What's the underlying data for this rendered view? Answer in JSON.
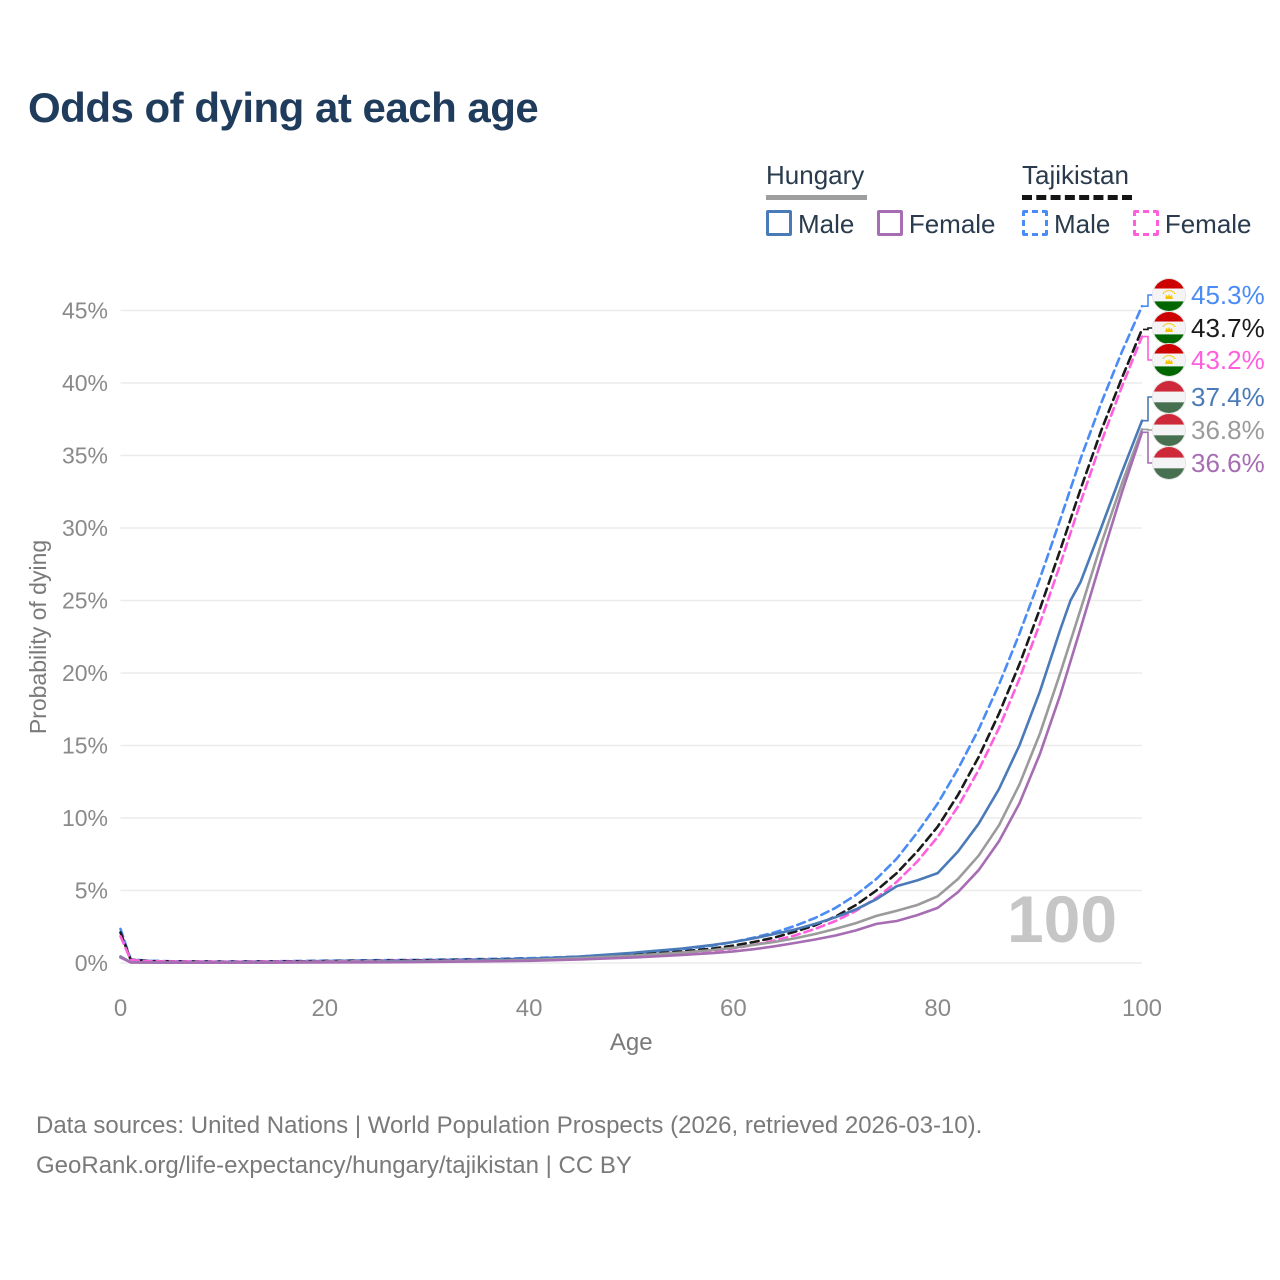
{
  "title": "Odds of dying at each age",
  "legend": {
    "groups": [
      {
        "title": "Hungary",
        "style": "solid",
        "underline_color": "#9e9e9e",
        "items": [
          {
            "label": "Male",
            "color": "#4a7ab8"
          },
          {
            "label": "Female",
            "color": "#a76db3"
          }
        ]
      },
      {
        "title": "Tajikistan",
        "style": "dashed",
        "underline_color": "#151515",
        "items": [
          {
            "label": "Male",
            "color": "#4a8bf5"
          },
          {
            "label": "Female",
            "color": "#ff5fdd"
          }
        ]
      }
    ]
  },
  "end_labels": [
    {
      "value": "45.3%",
      "pct": 45.3,
      "color": "#4a8bf5",
      "flag": "tajikistan-flag-icon",
      "series": "Tajikistan Male"
    },
    {
      "value": "43.7%",
      "pct": 43.7,
      "color": "#1a1a1a",
      "flag": "tajikistan-flag-icon",
      "series": "Tajikistan Both sexes"
    },
    {
      "value": "43.2%",
      "pct": 43.2,
      "color": "#ff5fdd",
      "flag": "tajikistan-flag-icon",
      "series": "Tajikistan Female"
    },
    {
      "value": "37.4%",
      "pct": 37.4,
      "color": "#4a7ab8",
      "flag": "hungary-flag-icon",
      "series": "Hungary Male"
    },
    {
      "value": "36.8%",
      "pct": 36.8,
      "color": "#9b9b9b",
      "flag": "hungary-flag-icon",
      "series": "Hungary Both sexes"
    },
    {
      "value": "36.6%",
      "pct": 36.6,
      "color": "#a76db3",
      "flag": "hungary-flag-icon",
      "series": "Hungary Female"
    }
  ],
  "footer": {
    "line1": "Data sources: United Nations | World Population Prospects (2026, retrieved 2026-03-10).",
    "line2": "GeoRank.org/life-expectancy/hungary/tajikistan | CC BY"
  },
  "colors": {
    "title": "#203c5c",
    "grid": "#ebebeb",
    "tick_text": "#8a8a8a",
    "axis_title_text": "#7a7a7a",
    "watermark": "#c6c6c6"
  },
  "chart_data": {
    "type": "line",
    "title": "Odds of dying at each age",
    "xlabel": "Age",
    "ylabel": "Probability of dying",
    "xlim": [
      0,
      100
    ],
    "ylim_pct": [
      0,
      45
    ],
    "xticks": [
      0,
      20,
      40,
      60,
      80,
      100
    ],
    "yticks_pct": [
      0,
      5,
      10,
      15,
      20,
      25,
      30,
      35,
      40,
      45
    ],
    "grid": "horizontal-only",
    "legend_position": "top-right",
    "watermark": "100",
    "series": [
      {
        "id": "tj-male",
        "name": "Tajikistan Male",
        "country": "Tajikistan",
        "sex": "Male",
        "color": "#4a8bf5",
        "dash": true,
        "end_value_pct": 45.3,
        "points": [
          [
            0,
            2.35
          ],
          [
            1,
            0.25
          ],
          [
            3,
            0.15
          ],
          [
            5,
            0.12
          ],
          [
            10,
            0.1
          ],
          [
            15,
            0.12
          ],
          [
            20,
            0.16
          ],
          [
            25,
            0.19
          ],
          [
            30,
            0.22
          ],
          [
            35,
            0.27
          ],
          [
            40,
            0.33
          ],
          [
            45,
            0.45
          ],
          [
            50,
            0.65
          ],
          [
            55,
            0.95
          ],
          [
            58,
            1.2
          ],
          [
            60,
            1.45
          ],
          [
            62,
            1.75
          ],
          [
            64,
            2.1
          ],
          [
            66,
            2.55
          ],
          [
            68,
            3.1
          ],
          [
            70,
            3.8
          ],
          [
            72,
            4.7
          ],
          [
            74,
            5.8
          ],
          [
            76,
            7.2
          ],
          [
            78,
            9.0
          ],
          [
            80,
            11.0
          ],
          [
            82,
            13.4
          ],
          [
            84,
            16.1
          ],
          [
            86,
            19.2
          ],
          [
            88,
            22.7
          ],
          [
            90,
            26.5
          ],
          [
            92,
            30.6
          ],
          [
            94,
            34.8
          ],
          [
            96,
            38.6
          ],
          [
            98,
            42.1
          ],
          [
            100,
            45.3
          ]
        ]
      },
      {
        "id": "tj-both",
        "name": "Tajikistan Both sexes",
        "country": "Tajikistan",
        "sex": "Both",
        "color": "#1a1a1a",
        "dash": true,
        "end_value_pct": 43.7,
        "points": [
          [
            0,
            2.1
          ],
          [
            1,
            0.22
          ],
          [
            3,
            0.13
          ],
          [
            5,
            0.11
          ],
          [
            10,
            0.09
          ],
          [
            15,
            0.1
          ],
          [
            20,
            0.13
          ],
          [
            25,
            0.16
          ],
          [
            30,
            0.19
          ],
          [
            35,
            0.23
          ],
          [
            40,
            0.28
          ],
          [
            45,
            0.38
          ],
          [
            50,
            0.55
          ],
          [
            55,
            0.8
          ],
          [
            58,
            1.0
          ],
          [
            60,
            1.2
          ],
          [
            62,
            1.45
          ],
          [
            64,
            1.75
          ],
          [
            66,
            2.15
          ],
          [
            68,
            2.6
          ],
          [
            70,
            3.2
          ],
          [
            72,
            4.0
          ],
          [
            74,
            5.0
          ],
          [
            76,
            6.2
          ],
          [
            78,
            7.7
          ],
          [
            80,
            9.4
          ],
          [
            82,
            11.6
          ],
          [
            84,
            14.2
          ],
          [
            86,
            17.2
          ],
          [
            88,
            20.6
          ],
          [
            90,
            24.4
          ],
          [
            92,
            28.5
          ],
          [
            94,
            32.7
          ],
          [
            96,
            36.7
          ],
          [
            98,
            40.3
          ],
          [
            100,
            43.7
          ]
        ]
      },
      {
        "id": "tj-female",
        "name": "Tajikistan Female",
        "country": "Tajikistan",
        "sex": "Female",
        "color": "#ff5fdd",
        "dash": true,
        "end_value_pct": 43.2,
        "points": [
          [
            0,
            1.85
          ],
          [
            1,
            0.2
          ],
          [
            3,
            0.12
          ],
          [
            5,
            0.1
          ],
          [
            10,
            0.08
          ],
          [
            15,
            0.09
          ],
          [
            20,
            0.11
          ],
          [
            25,
            0.13
          ],
          [
            30,
            0.16
          ],
          [
            35,
            0.2
          ],
          [
            40,
            0.24
          ],
          [
            45,
            0.33
          ],
          [
            50,
            0.47
          ],
          [
            55,
            0.68
          ],
          [
            58,
            0.85
          ],
          [
            60,
            1.0
          ],
          [
            62,
            1.25
          ],
          [
            64,
            1.55
          ],
          [
            66,
            1.9
          ],
          [
            68,
            2.35
          ],
          [
            70,
            2.9
          ],
          [
            72,
            3.6
          ],
          [
            74,
            4.5
          ],
          [
            76,
            5.6
          ],
          [
            78,
            7.0
          ],
          [
            80,
            8.7
          ],
          [
            82,
            10.8
          ],
          [
            84,
            13.3
          ],
          [
            86,
            16.2
          ],
          [
            88,
            19.6
          ],
          [
            90,
            23.4
          ],
          [
            92,
            27.5
          ],
          [
            94,
            31.8
          ],
          [
            96,
            35.9
          ],
          [
            98,
            39.7
          ],
          [
            100,
            43.2
          ]
        ]
      },
      {
        "id": "hu-male",
        "name": "Hungary Male",
        "country": "Hungary",
        "sex": "Male",
        "color": "#4a7ab8",
        "dash": false,
        "end_value_pct": 37.4,
        "points": [
          [
            0,
            0.45
          ],
          [
            1,
            0.05
          ],
          [
            3,
            0.035
          ],
          [
            5,
            0.03
          ],
          [
            10,
            0.03
          ],
          [
            15,
            0.05
          ],
          [
            20,
            0.08
          ],
          [
            25,
            0.1
          ],
          [
            30,
            0.13
          ],
          [
            35,
            0.18
          ],
          [
            40,
            0.28
          ],
          [
            45,
            0.45
          ],
          [
            50,
            0.7
          ],
          [
            55,
            1.0
          ],
          [
            58,
            1.25
          ],
          [
            60,
            1.45
          ],
          [
            62,
            1.7
          ],
          [
            64,
            2.0
          ],
          [
            66,
            2.3
          ],
          [
            68,
            2.7
          ],
          [
            70,
            3.15
          ],
          [
            72,
            3.7
          ],
          [
            74,
            4.4
          ],
          [
            76,
            5.3
          ],
          [
            78,
            5.7
          ],
          [
            80,
            6.2
          ],
          [
            82,
            7.7
          ],
          [
            84,
            9.6
          ],
          [
            86,
            12.0
          ],
          [
            88,
            15.0
          ],
          [
            90,
            18.7
          ],
          [
            92,
            23.0
          ],
          [
            93,
            25.0
          ],
          [
            94,
            26.3
          ],
          [
            96,
            30.0
          ],
          [
            98,
            33.8
          ],
          [
            100,
            37.4
          ]
        ]
      },
      {
        "id": "hu-both",
        "name": "Hungary Both sexes",
        "country": "Hungary",
        "sex": "Both",
        "color": "#9b9b9b",
        "dash": false,
        "end_value_pct": 36.8,
        "points": [
          [
            0,
            0.4
          ],
          [
            1,
            0.045
          ],
          [
            3,
            0.03
          ],
          [
            5,
            0.025
          ],
          [
            10,
            0.025
          ],
          [
            15,
            0.04
          ],
          [
            20,
            0.06
          ],
          [
            25,
            0.08
          ],
          [
            30,
            0.1
          ],
          [
            35,
            0.14
          ],
          [
            40,
            0.21
          ],
          [
            45,
            0.33
          ],
          [
            50,
            0.5
          ],
          [
            55,
            0.72
          ],
          [
            58,
            0.9
          ],
          [
            60,
            1.05
          ],
          [
            62,
            1.25
          ],
          [
            64,
            1.45
          ],
          [
            66,
            1.7
          ],
          [
            68,
            2.0
          ],
          [
            70,
            2.35
          ],
          [
            72,
            2.75
          ],
          [
            74,
            3.25
          ],
          [
            76,
            3.6
          ],
          [
            78,
            4.0
          ],
          [
            80,
            4.6
          ],
          [
            82,
            5.8
          ],
          [
            84,
            7.4
          ],
          [
            86,
            9.5
          ],
          [
            88,
            12.3
          ],
          [
            90,
            15.8
          ],
          [
            92,
            20.0
          ],
          [
            94,
            24.4
          ],
          [
            96,
            28.9
          ],
          [
            98,
            33.0
          ],
          [
            100,
            36.8
          ]
        ]
      },
      {
        "id": "hu-female",
        "name": "Hungary Female",
        "country": "Hungary",
        "sex": "Female",
        "color": "#a76db3",
        "dash": false,
        "end_value_pct": 36.6,
        "points": [
          [
            0,
            0.38
          ],
          [
            1,
            0.04
          ],
          [
            3,
            0.025
          ],
          [
            5,
            0.02
          ],
          [
            10,
            0.02
          ],
          [
            15,
            0.03
          ],
          [
            20,
            0.04
          ],
          [
            25,
            0.05
          ],
          [
            30,
            0.07
          ],
          [
            35,
            0.1
          ],
          [
            40,
            0.15
          ],
          [
            45,
            0.24
          ],
          [
            50,
            0.37
          ],
          [
            55,
            0.55
          ],
          [
            58,
            0.68
          ],
          [
            60,
            0.8
          ],
          [
            62,
            0.95
          ],
          [
            64,
            1.15
          ],
          [
            66,
            1.38
          ],
          [
            68,
            1.62
          ],
          [
            70,
            1.9
          ],
          [
            72,
            2.25
          ],
          [
            74,
            2.7
          ],
          [
            76,
            2.9
          ],
          [
            78,
            3.3
          ],
          [
            80,
            3.8
          ],
          [
            82,
            4.9
          ],
          [
            84,
            6.4
          ],
          [
            86,
            8.4
          ],
          [
            88,
            11.0
          ],
          [
            90,
            14.4
          ],
          [
            92,
            18.5
          ],
          [
            94,
            23.1
          ],
          [
            96,
            27.8
          ],
          [
            98,
            32.4
          ],
          [
            100,
            36.6
          ]
        ]
      }
    ]
  }
}
